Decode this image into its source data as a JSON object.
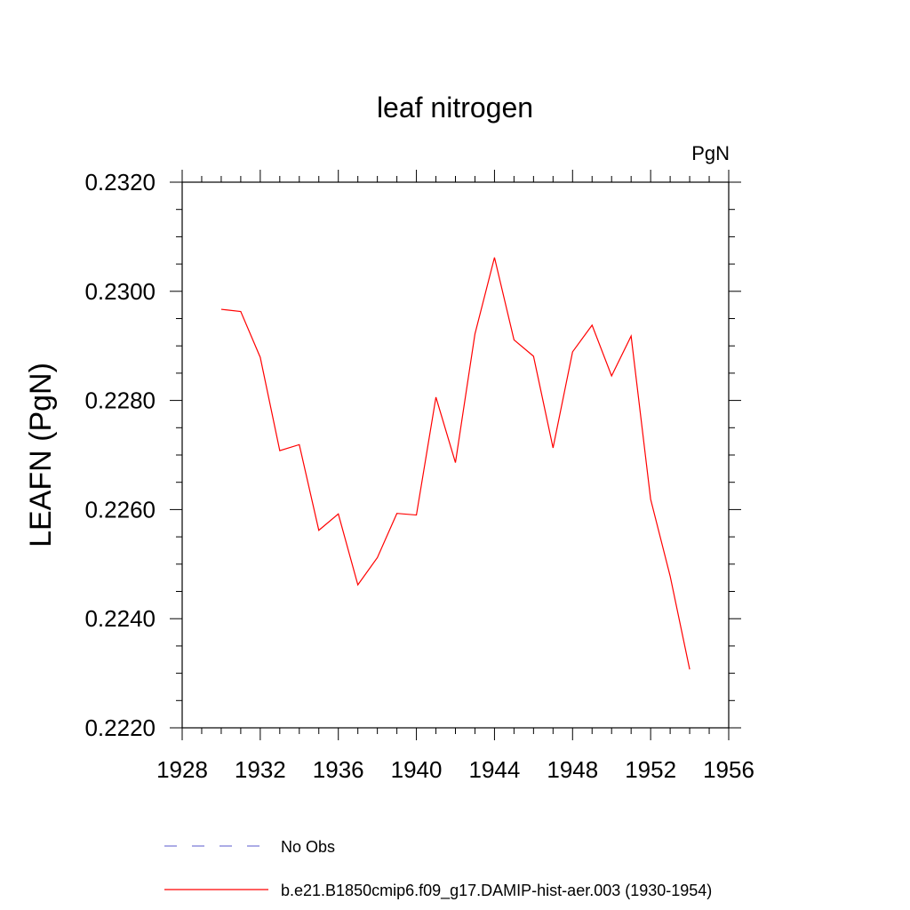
{
  "chart_data": {
    "type": "line",
    "title": "leaf nitrogen",
    "units": "PgN",
    "ylabel": "LEAFN  (PgN)",
    "xlabel": "",
    "xlim": [
      1928,
      1956
    ],
    "ylim": [
      0.222,
      0.232
    ],
    "x_ticks": [
      "1928",
      "1932",
      "1936",
      "1940",
      "1944",
      "1948",
      "1952",
      "1956"
    ],
    "y_ticks": [
      "0.2220",
      "0.2240",
      "0.2260",
      "0.2280",
      "0.2300",
      "0.2320"
    ],
    "grid": false,
    "legend_position": "bottom",
    "series": [
      {
        "name": "No Obs",
        "color": "#7b7bd6",
        "dash": "dashed",
        "x": [],
        "values": []
      },
      {
        "name": "b.e21.B1850cmip6.f09_g17.DAMIP-hist-aer.003 (1930-1954)",
        "color": "#ff0000",
        "dash": "solid",
        "x": [
          1930,
          1931,
          1932,
          1933,
          1934,
          1935,
          1936,
          1937,
          1938,
          1939,
          1940,
          1941,
          1942,
          1943,
          1944,
          1945,
          1946,
          1947,
          1948,
          1949,
          1950,
          1951,
          1952,
          1953,
          1954
        ],
        "values": [
          0.22967,
          0.22963,
          0.22879,
          0.22708,
          0.22719,
          0.22562,
          0.22592,
          0.22462,
          0.22512,
          0.22593,
          0.2259,
          0.22806,
          0.22686,
          0.22922,
          0.23062,
          0.22911,
          0.22881,
          0.22713,
          0.22889,
          0.22938,
          0.22845,
          0.22918,
          0.22619,
          0.22478,
          0.22307
        ]
      }
    ]
  }
}
